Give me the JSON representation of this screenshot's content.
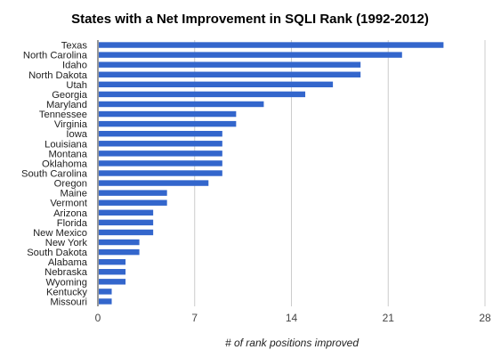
{
  "chart_data": {
    "type": "bar",
    "orientation": "horizontal",
    "title": "States with a Net Improvement in SQLI Rank (1992-2012)",
    "xlabel": "# of rank positions improved",
    "ylabel": "",
    "categories": [
      "Texas",
      "North Carolina",
      "Idaho",
      "North Dakota",
      "Utah",
      "Georgia",
      "Maryland",
      "Tennessee",
      "Virginia",
      "Iowa",
      "Louisiana",
      "Montana",
      "Oklahoma",
      "South Carolina",
      "Oregon",
      "Maine",
      "Vermont",
      "Arizona",
      "Florida",
      "New Mexico",
      "New York",
      "South Dakota",
      "Alabama",
      "Nebraska",
      "Wyoming",
      "Kentucky",
      "Missouri"
    ],
    "values": [
      25,
      22,
      19,
      19,
      17,
      15,
      12,
      10,
      10,
      9,
      9,
      9,
      9,
      9,
      8,
      5,
      5,
      4,
      4,
      4,
      3,
      3,
      2,
      2,
      2,
      1,
      1
    ],
    "xlim": [
      0,
      28
    ],
    "xticks": [
      0,
      7,
      14,
      21,
      28
    ],
    "grid": true,
    "legend": "none",
    "bar_color": "#3366cc"
  }
}
